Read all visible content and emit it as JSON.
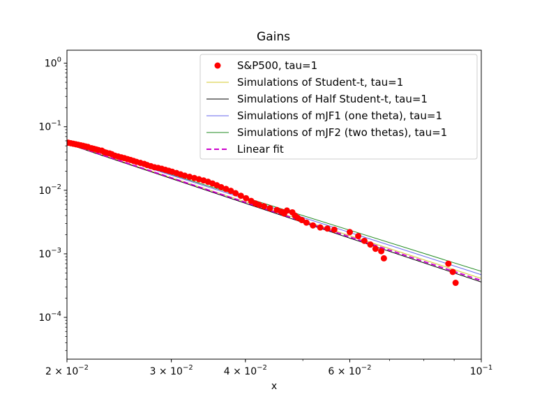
{
  "chart_data": {
    "type": "scatter",
    "title": "Gains",
    "xlabel": "x",
    "ylabel": "",
    "xscale": "log",
    "yscale": "log",
    "xlim": [
      0.02,
      0.1
    ],
    "ylim": [
      2.2e-05,
      1.6
    ],
    "x_ticks": [
      {
        "value": 0.02,
        "base": "2 × 10",
        "exp": "−2"
      },
      {
        "value": 0.03,
        "base": "3 × 10",
        "exp": "−2"
      },
      {
        "value": 0.04,
        "base": "4 × 10",
        "exp": "−2"
      },
      {
        "value": 0.06,
        "base": "6 × 10",
        "exp": "−2"
      },
      {
        "value": 0.1,
        "base": "10",
        "exp": "−1"
      }
    ],
    "y_ticks": [
      {
        "value": 1,
        "base": "10",
        "exp": "0"
      },
      {
        "value": 0.1,
        "base": "10",
        "exp": "−1"
      },
      {
        "value": 0.01,
        "base": "10",
        "exp": "−2"
      },
      {
        "value": 0.001,
        "base": "10",
        "exp": "−3"
      },
      {
        "value": 0.0001,
        "base": "10",
        "exp": "−4"
      }
    ],
    "legend_position": "top-right",
    "scatter": {
      "name": "S&P500, tau=1",
      "color": "#ff0000",
      "points": [
        [
          0.0201,
          0.056
        ],
        [
          0.0203,
          0.055
        ],
        [
          0.0205,
          0.054
        ],
        [
          0.0207,
          0.053
        ],
        [
          0.0209,
          0.052
        ],
        [
          0.0211,
          0.051
        ],
        [
          0.0213,
          0.05
        ],
        [
          0.0215,
          0.049
        ],
        [
          0.0217,
          0.048
        ],
        [
          0.022,
          0.046
        ],
        [
          0.0222,
          0.045
        ],
        [
          0.0224,
          0.044
        ],
        [
          0.0226,
          0.043
        ],
        [
          0.0229,
          0.042
        ],
        [
          0.0231,
          0.04
        ],
        [
          0.0233,
          0.039
        ],
        [
          0.0236,
          0.038
        ],
        [
          0.0238,
          0.037
        ],
        [
          0.0241,
          0.035
        ],
        [
          0.0244,
          0.034
        ],
        [
          0.0247,
          0.033
        ],
        [
          0.025,
          0.032
        ],
        [
          0.0253,
          0.031
        ],
        [
          0.0256,
          0.03
        ],
        [
          0.0259,
          0.029
        ],
        [
          0.0262,
          0.028
        ],
        [
          0.0266,
          0.027
        ],
        [
          0.027,
          0.026
        ],
        [
          0.0273,
          0.025
        ],
        [
          0.0277,
          0.024
        ],
        [
          0.0281,
          0.023
        ],
        [
          0.0285,
          0.0225
        ],
        [
          0.0289,
          0.0218
        ],
        [
          0.0293,
          0.021
        ],
        [
          0.0297,
          0.0203
        ],
        [
          0.0301,
          0.0196
        ],
        [
          0.0306,
          0.0187
        ],
        [
          0.0311,
          0.0178
        ],
        [
          0.0316,
          0.017
        ],
        [
          0.0322,
          0.0163
        ],
        [
          0.0328,
          0.0156
        ],
        [
          0.0334,
          0.0149
        ],
        [
          0.034,
          0.0143
        ],
        [
          0.0346,
          0.0136
        ],
        [
          0.0352,
          0.0128
        ],
        [
          0.0358,
          0.012
        ],
        [
          0.0364,
          0.0112
        ],
        [
          0.0371,
          0.0105
        ],
        [
          0.0378,
          0.0098
        ],
        [
          0.0385,
          0.009
        ],
        [
          0.0393,
          0.0082
        ],
        [
          0.0401,
          0.0075
        ],
        [
          0.0409,
          0.0068
        ],
        [
          0.0416,
          0.0062
        ],
        [
          0.0422,
          0.0059
        ],
        [
          0.043,
          0.0056
        ],
        [
          0.044,
          0.0052
        ],
        [
          0.0452,
          0.0049
        ],
        [
          0.046,
          0.0046
        ],
        [
          0.0465,
          0.0043
        ],
        [
          0.047,
          0.0048
        ],
        [
          0.048,
          0.0045
        ],
        [
          0.0485,
          0.004
        ],
        [
          0.049,
          0.0037
        ],
        [
          0.0498,
          0.0034
        ],
        [
          0.0507,
          0.0031
        ],
        [
          0.052,
          0.0028
        ],
        [
          0.0535,
          0.0026
        ],
        [
          0.055,
          0.0025
        ],
        [
          0.0565,
          0.0024
        ],
        [
          0.06,
          0.0022
        ],
        [
          0.062,
          0.0019
        ],
        [
          0.0635,
          0.0016
        ],
        [
          0.065,
          0.0014
        ],
        [
          0.0663,
          0.0012
        ],
        [
          0.0678,
          0.0011
        ],
        [
          0.0685,
          0.00085
        ],
        [
          0.088,
          0.0007
        ],
        [
          0.0895,
          0.00052
        ],
        [
          0.0905,
          0.00035
        ]
      ]
    },
    "lines": [
      {
        "name": "Simulations of Student-t, tau=1",
        "color": "#d4c82a",
        "width": 1,
        "dash": "",
        "points": [
          [
            0.02,
            0.054
          ],
          [
            0.1,
            0.00041
          ]
        ]
      },
      {
        "name": "Simulations of Half Student-t, tau=1",
        "color": "#000000",
        "width": 1,
        "dash": "",
        "points": [
          [
            0.02,
            0.054
          ],
          [
            0.1,
            0.00036
          ]
        ]
      },
      {
        "name": "Simulations of mJF1 (one theta), tau=1",
        "color": "#6666ee",
        "width": 1,
        "dash": "",
        "points": [
          [
            0.02,
            0.058
          ],
          [
            0.1,
            0.00047
          ]
        ]
      },
      {
        "name": "Simulations of mJF2 (two thetas), tau=1",
        "color": "#228b22",
        "width": 1,
        "dash": "",
        "points": [
          [
            0.02,
            0.058
          ],
          [
            0.1,
            0.00053
          ]
        ]
      },
      {
        "name": "Linear fit",
        "color": "#cc00cc",
        "width": 2,
        "dash": "7,4",
        "points": [
          [
            0.02,
            0.055
          ],
          [
            0.1,
            0.00038
          ]
        ]
      }
    ]
  }
}
